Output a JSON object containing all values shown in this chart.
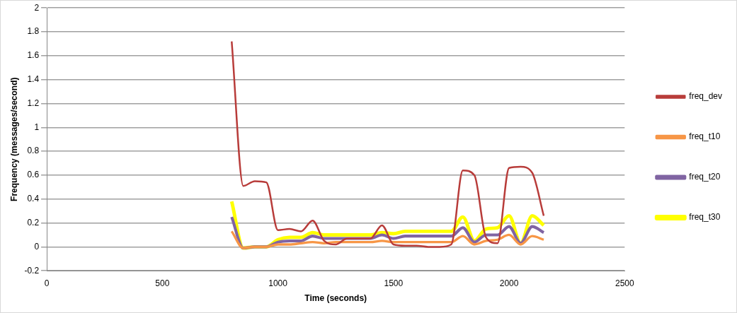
{
  "chart_data": {
    "type": "line",
    "xlabel": "Time (seconds)",
    "ylabel": "Frequency (messages/second)",
    "x": [
      800,
      850,
      900,
      950,
      1000,
      1050,
      1100,
      1150,
      1200,
      1250,
      1300,
      1350,
      1400,
      1450,
      1500,
      1550,
      1600,
      1650,
      1700,
      1750,
      1800,
      1850,
      1900,
      1950,
      2000,
      2050,
      2100,
      2150
    ],
    "series": [
      {
        "name": "freq_dev",
        "color": "#b83c3a",
        "values": [
          1.72,
          0.51,
          0.55,
          0.54,
          0.14,
          0.15,
          0.13,
          0.22,
          0.05,
          0.02,
          0.07,
          0.07,
          0.07,
          0.18,
          0.02,
          0.01,
          0.01,
          0,
          0,
          0.02,
          0.64,
          0.6,
          0.08,
          0.03,
          0.66,
          0.67,
          0.62,
          0.26
        ]
      },
      {
        "name": "freq_t10",
        "color": "#f79646",
        "values": [
          0.13,
          -0.01,
          0,
          0,
          0.02,
          0.02,
          0.03,
          0.04,
          0.03,
          0.04,
          0.04,
          0.04,
          0.04,
          0.05,
          0.04,
          0.04,
          0.04,
          0.04,
          0.04,
          0.04,
          0.09,
          0.02,
          0.05,
          0.06,
          0.1,
          0.02,
          0.09,
          0.06
        ]
      },
      {
        "name": "freq_t20",
        "color": "#8064a2",
        "values": [
          0.25,
          -0.01,
          0,
          0,
          0.04,
          0.05,
          0.05,
          0.09,
          0.07,
          0.07,
          0.07,
          0.07,
          0.07,
          0.1,
          0.07,
          0.09,
          0.09,
          0.09,
          0.09,
          0.09,
          0.16,
          0.04,
          0.1,
          0.1,
          0.17,
          0.03,
          0.17,
          0.12
        ]
      },
      {
        "name": "freq_t30",
        "color": "#ffff00",
        "values": [
          0.38,
          -0.01,
          0,
          0,
          0.06,
          0.08,
          0.08,
          0.12,
          0.1,
          0.1,
          0.1,
          0.1,
          0.1,
          0.12,
          0.11,
          0.13,
          0.13,
          0.13,
          0.13,
          0.13,
          0.25,
          0.05,
          0.15,
          0.16,
          0.26,
          0.03,
          0.26,
          0.18
        ]
      }
    ],
    "xlim": [
      0,
      2500
    ],
    "xticks": [
      0,
      500,
      1000,
      1500,
      2000,
      2500
    ],
    "ylim": [
      -0.2,
      2
    ],
    "yticks": [
      -0.2,
      0,
      0.2,
      0.4,
      0.6,
      0.8,
      1,
      1.2,
      1.4,
      1.6,
      1.8,
      2
    ],
    "grid": "y",
    "legend": "right",
    "marker": "none",
    "line_style": "solid"
  }
}
